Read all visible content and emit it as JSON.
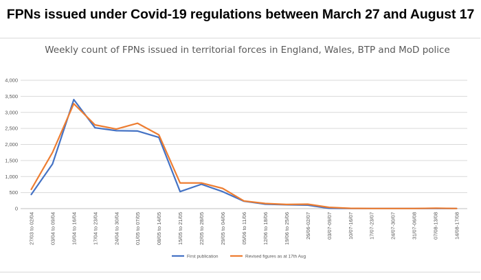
{
  "headline": "FPNs issued under Covid-19 regulations between March 27 and August 17",
  "chart_data": {
    "type": "line",
    "title": "Weekly count of FPNs issued in territorial forces in England, Wales, BTP and MoD police",
    "xlabel": "",
    "ylabel": "",
    "categories": [
      "27/03 to 02/04",
      "03/04 to 09/04",
      "10/04 to 16/04",
      "17/04 to 23/04",
      "24/04 to 30/04",
      "01/05 to 07/05",
      "08/05 to 14/05",
      "15/05 to 21/05",
      "22/05 to 28/05",
      "29/05 to 04/06",
      "05/06 to 11/06",
      "12/06 to 18/06",
      "19/06 to 25/06",
      "26/06-02/07",
      "03/07-09/07",
      "10/07-16/07",
      "17/07-23/07",
      "24/07-30/07",
      "31/07-06/08",
      "07/08-13/08",
      "14/08-17/08"
    ],
    "series": [
      {
        "name": "First publication",
        "color": "#4472c4",
        "values": [
          440,
          1390,
          3400,
          2520,
          2430,
          2420,
          2220,
          530,
          760,
          530,
          230,
          140,
          120,
          110,
          10,
          5,
          5,
          5,
          5,
          5,
          5
        ]
      },
      {
        "name": "Revised figures as at 17th Aug",
        "color": "#ed7d31",
        "values": [
          600,
          1750,
          3270,
          2610,
          2480,
          2660,
          2300,
          800,
          800,
          630,
          240,
          160,
          130,
          140,
          40,
          10,
          5,
          5,
          5,
          15,
          5
        ]
      }
    ],
    "ylim": [
      0,
      4000
    ],
    "yticks": [
      "0",
      "500",
      "1,000",
      "1,500",
      "2,000",
      "2,500",
      "3,000",
      "3,500",
      "4,000"
    ],
    "grid": true,
    "legend": "bottom"
  }
}
